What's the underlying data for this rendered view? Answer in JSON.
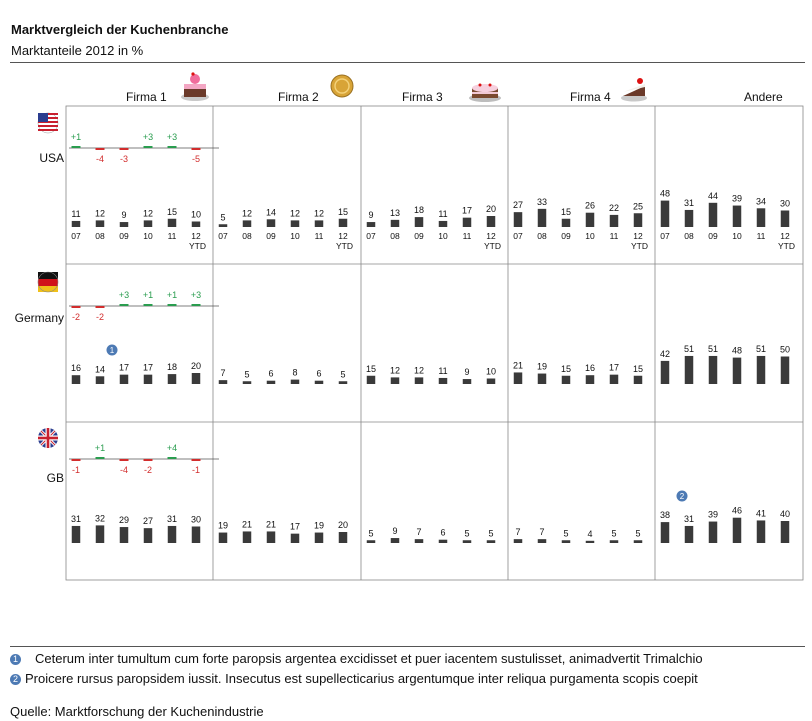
{
  "title": "Marktvergleich der Kuchenbranche",
  "subtitle": "Marktanteile 2012 in %",
  "notes": [
    {
      "marker": "1",
      "text": "Ceterum inter tumultum cum forte paropsis argentea excidisset et puer iacentem sustulisset, animadvertit Trimalchio"
    },
    {
      "marker": "2",
      "text": "Proicere rursus paropsidem iussit. Insecutus est supellecticarius argentumque inter reliqua purgamenta scopis coepit"
    }
  ],
  "source": "Quelle: Marktforschung der Kuchenindustrie",
  "colors": {
    "bar": "#3a3a3a",
    "positive": "#2a9d4f",
    "negative": "#d22d2d",
    "marker": "#4d7ab4",
    "grid": "#888888"
  },
  "icons": {
    "Firma 1": "pink-cake-icon",
    "Firma 2": "gold-coin-cake-icon",
    "Firma 3": "layer-cake-icon",
    "Firma 4": "cake-slice-icon",
    "USA": "us-flag-icon",
    "Germany": "german-flag-icon",
    "GB": "uk-flag-icon"
  },
  "chart_data": {
    "type": "bar",
    "categories": [
      "07",
      "08",
      "09",
      "10",
      "11",
      "12"
    ],
    "last_category_note": "YTD",
    "columns": [
      "Firma 1",
      "Firma 2",
      "Firma 3",
      "Firma 4",
      "Andere"
    ],
    "rows": [
      {
        "name": "USA",
        "values": {
          "Firma 1": [
            11,
            12,
            9,
            12,
            15,
            10
          ],
          "Firma 2": [
            5,
            12,
            14,
            12,
            12,
            15
          ],
          "Firma 3": [
            9,
            13,
            18,
            11,
            17,
            20
          ],
          "Firma 4": [
            27,
            33,
            15,
            26,
            22,
            25
          ],
          "Andere": [
            48,
            31,
            44,
            39,
            34,
            30
          ]
        },
        "deltas": [
          "+1",
          "-4",
          "-3",
          "+3",
          "+3",
          "-5"
        ]
      },
      {
        "name": "Germany",
        "values": {
          "Firma 1": [
            16,
            14,
            17,
            17,
            18,
            20
          ],
          "Firma 2": [
            7,
            5,
            6,
            8,
            6,
            5
          ],
          "Firma 3": [
            15,
            12,
            12,
            11,
            9,
            10
          ],
          "Firma 4": [
            21,
            19,
            15,
            16,
            17,
            15
          ],
          "Andere": [
            42,
            51,
            51,
            48,
            51,
            50
          ]
        },
        "deltas": [
          "-2",
          "-2",
          "+3",
          "+1",
          "+1",
          "+3"
        ]
      },
      {
        "name": "GB",
        "values": {
          "Firma 1": [
            31,
            32,
            29,
            27,
            31,
            30
          ],
          "Firma 2": [
            19,
            21,
            21,
            17,
            19,
            20
          ],
          "Firma 3": [
            5,
            9,
            7,
            6,
            5,
            5
          ],
          "Firma 4": [
            7,
            7,
            5,
            4,
            5,
            5
          ],
          "Andere": [
            38,
            31,
            39,
            46,
            41,
            40
          ]
        },
        "deltas": [
          "-1",
          "+1",
          "-4",
          "-2",
          "+4",
          "-1"
        ]
      }
    ],
    "markers": [
      {
        "marker": "1",
        "row": "Germany",
        "column": "Firma 1",
        "category": "08"
      },
      {
        "marker": "2",
        "row": "GB",
        "column": "Andere",
        "category": "07"
      }
    ],
    "grid": true,
    "legend": "none"
  }
}
